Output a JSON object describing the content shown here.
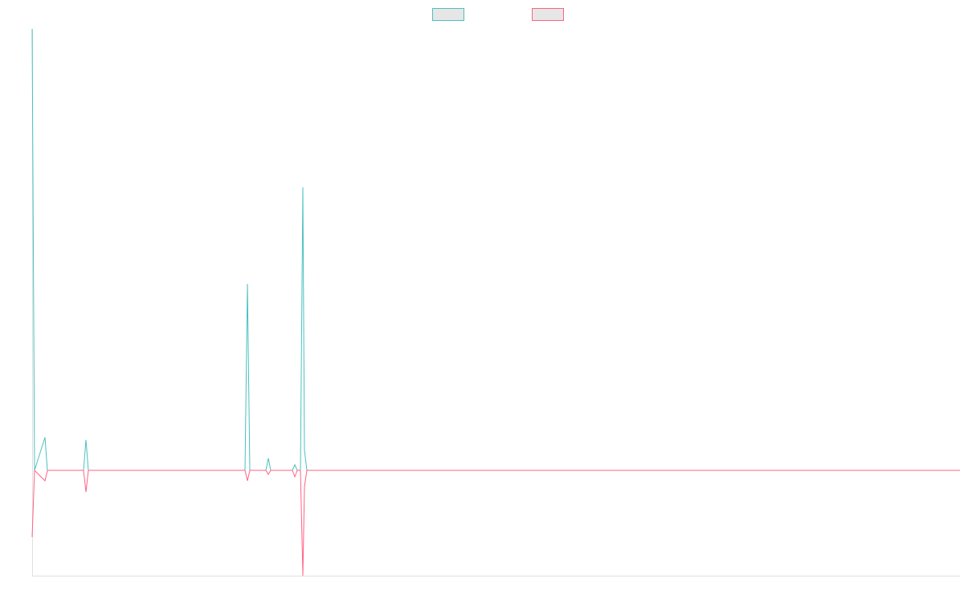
{
  "chart_data": {
    "type": "line",
    "x": [
      0,
      3,
      16,
      19,
      64,
      67,
      70,
      265,
      268,
      271,
      291,
      294,
      297,
      324,
      327,
      330,
      334,
      337,
      339,
      342,
      1155
    ],
    "xlim": [
      0,
      1155
    ],
    "ylim": [
      -131,
      549
    ],
    "legend_position": "top",
    "legend_fill": "#e6e6e6",
    "series": [
      {
        "color": "#4bc0c0",
        "values": [
          549,
          0,
          41,
          0,
          0,
          38,
          0,
          0,
          232,
          0,
          0,
          15,
          0,
          0,
          7,
          0,
          0,
          352,
          25,
          0,
          0
        ]
      },
      {
        "color": "#ff6384",
        "values": [
          -83,
          0,
          -13,
          0,
          0,
          -27,
          0,
          0,
          -13,
          0,
          0,
          -5,
          0,
          0,
          -8,
          0,
          0,
          -131,
          -20,
          0,
          0
        ]
      }
    ]
  }
}
